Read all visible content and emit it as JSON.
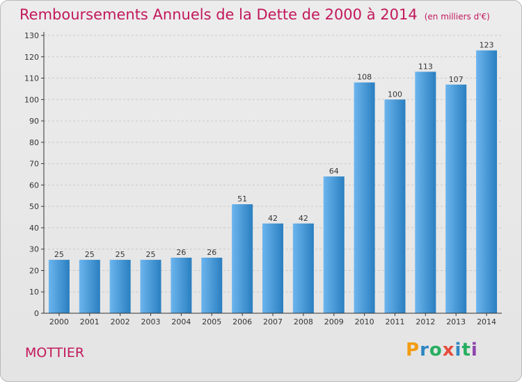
{
  "title": {
    "main": "Remboursements Annuels de la Dette de 2000 à 2014",
    "unit": "(en milliers d'€)"
  },
  "footer": {
    "commune": "MOTTIER",
    "logo_letters": [
      "P",
      "r",
      "o",
      "x",
      "i",
      "t",
      "i"
    ],
    "logo_colors": [
      "#f39c12",
      "#2e86c1",
      "#27ae60",
      "#e74c3c",
      "#2e86c1",
      "#27ae60",
      "#8e44ad"
    ]
  },
  "colors": {
    "bar_light": "#6cb5ee",
    "bar_dark": "#2a7fc0",
    "grid": "#c8c8c8",
    "axis": "#333333",
    "title": "#c2185b"
  },
  "chart_data": {
    "type": "bar",
    "categories": [
      "2000",
      "2001",
      "2002",
      "2003",
      "2004",
      "2005",
      "2006",
      "2007",
      "2008",
      "2009",
      "2010",
      "2011",
      "2012",
      "2013",
      "2014"
    ],
    "values": [
      25,
      25,
      25,
      25,
      26,
      26,
      51,
      42,
      42,
      64,
      108,
      100,
      113,
      107,
      123
    ],
    "yticks": [
      0,
      10,
      20,
      30,
      40,
      50,
      60,
      70,
      80,
      90,
      100,
      110,
      120,
      130
    ],
    "ylim": [
      0,
      130
    ],
    "grid": true,
    "legend": false,
    "title": "Remboursements Annuels de la Dette de 2000 à 2014",
    "xlabel": "",
    "ylabel": ""
  }
}
